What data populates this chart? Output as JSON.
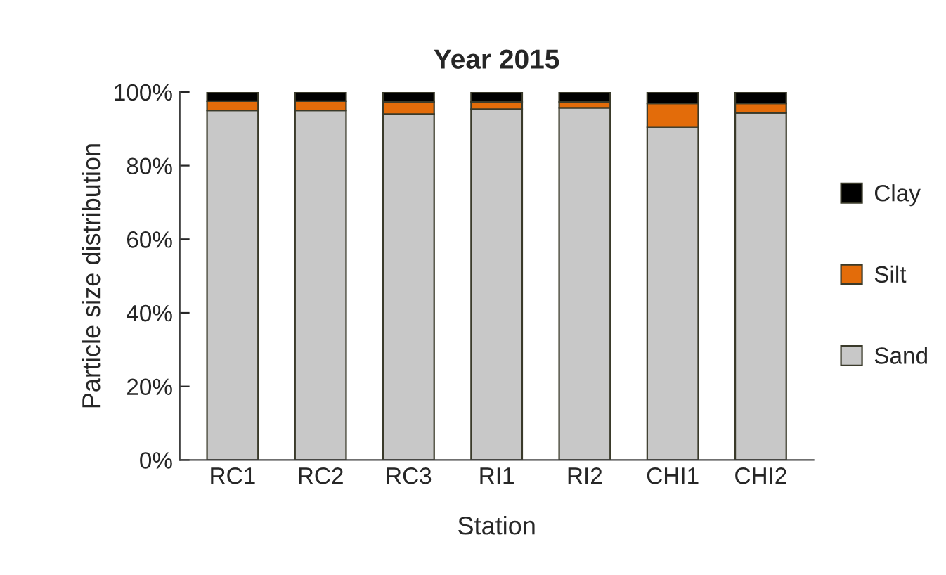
{
  "chart_data": {
    "type": "bar",
    "stacked": true,
    "title": "Year 2015",
    "xlabel": "Station",
    "ylabel": "Particle size distribution",
    "categories": [
      "RC1",
      "RC2",
      "RC3",
      "RI1",
      "RI2",
      "CHI1",
      "CHI2"
    ],
    "series": [
      {
        "name": "Sand",
        "color": "#c8c8c8",
        "values": [
          95,
          95,
          94,
          95.3,
          95.7,
          90.5,
          94.3
        ]
      },
      {
        "name": "Silt",
        "color": "#e36c0a",
        "values": [
          2.5,
          2.5,
          3.3,
          2,
          1.6,
          6.4,
          2.6
        ]
      },
      {
        "name": "Clay",
        "color": "#000000",
        "values": [
          2.5,
          2.5,
          2.7,
          2.7,
          2.7,
          3.1,
          3.1
        ]
      }
    ],
    "ylim": [
      0,
      100
    ],
    "yticks": [
      {
        "value": 0,
        "label": "0%"
      },
      {
        "value": 20,
        "label": "20%"
      },
      {
        "value": 40,
        "label": "40%"
      },
      {
        "value": 60,
        "label": "60%"
      },
      {
        "value": 80,
        "label": "80%"
      },
      {
        "value": 100,
        "label": "100%"
      }
    ],
    "legend": "right",
    "grid": false
  }
}
